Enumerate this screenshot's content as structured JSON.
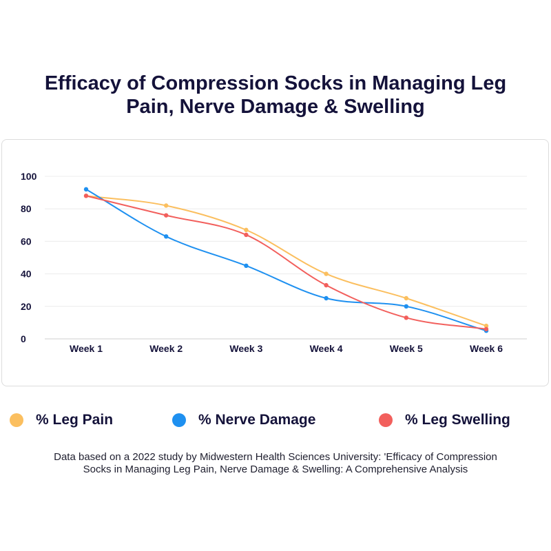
{
  "title_lines": [
    "Efficacy of Compression Socks in Managing Leg",
    "Pain, Nerve Damage & Swelling"
  ],
  "chart_data": {
    "type": "line",
    "categories": [
      "Week 1",
      "Week 2",
      "Week 3",
      "Week 4",
      "Week 5",
      "Week 6"
    ],
    "ylim": [
      0,
      100
    ],
    "yticks": [
      0,
      20,
      40,
      60,
      80,
      100
    ],
    "grid": true,
    "legend_position": "bottom",
    "series": [
      {
        "name": "% Leg Pain",
        "color": "#fbbf5f",
        "values": [
          88,
          82,
          67,
          40,
          25,
          8
        ]
      },
      {
        "name": "% Nerve Damage",
        "color": "#1e90f0",
        "values": [
          92,
          63,
          45,
          25,
          20,
          5
        ]
      },
      {
        "name": "% Leg Swelling",
        "color": "#f25f5c",
        "values": [
          88,
          76,
          64,
          33,
          13,
          6
        ]
      }
    ]
  },
  "note_lines": [
    "Data based on a 2022 study by Midwestern Health Sciences University: 'Efficacy of Compression",
    "Socks in Managing Leg Pain, Nerve Damage & Swelling: A Comprehensive Analysis"
  ]
}
